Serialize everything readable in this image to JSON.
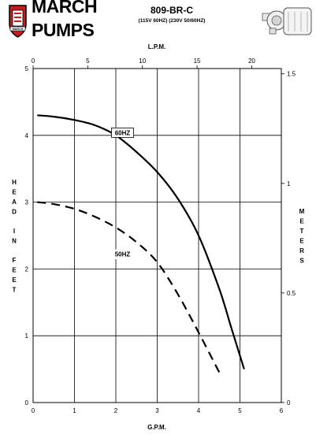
{
  "header": {
    "brand_line1": "MARCH",
    "brand_line2": "PUMPS",
    "logo_text": "MARCH",
    "model": "809-BR-C",
    "voltage": "(115V 60HZ) (230V 50/60HZ)"
  },
  "chart_data": {
    "type": "line",
    "title": "809-BR-C",
    "subtitle": "(115V 60HZ) (230V 50/60HZ)",
    "xlabel": "G.P.M.",
    "x2label": "L.P.M.",
    "ylabel": "HEAD IN FEET",
    "y2label": "METERS",
    "xlim": [
      0,
      6
    ],
    "ylim": [
      0,
      5
    ],
    "x2lim": [
      0,
      22.71
    ],
    "y2lim": [
      0,
      1.524
    ],
    "grid": true,
    "x_ticks": [
      0,
      1,
      2,
      3,
      4,
      5,
      6
    ],
    "y_ticks": [
      0,
      1,
      2,
      3,
      4,
      5
    ],
    "x2_ticks": [
      0,
      5,
      10,
      15,
      20
    ],
    "y2_ticks": [
      0,
      0.5,
      1,
      1.5
    ],
    "x_tick_labels": [
      "0",
      "1",
      "2",
      "3",
      "4",
      "5",
      "6"
    ],
    "y_tick_labels": [
      "0",
      "1",
      "2",
      "3",
      "4",
      "5"
    ],
    "x2_tick_labels": [
      "0",
      "5",
      "10",
      "15",
      "20"
    ],
    "y2_tick_labels": [
      "0",
      "0.5",
      "1",
      "1.5"
    ],
    "series": [
      {
        "name": "60HZ",
        "style": "solid",
        "x": [
          0.1,
          0.5,
          1.0,
          1.5,
          2.0,
          2.5,
          3.0,
          3.5,
          4.0,
          4.5,
          4.8,
          5.1
        ],
        "y": [
          4.3,
          4.28,
          4.23,
          4.15,
          4.0,
          3.75,
          3.45,
          3.05,
          2.5,
          1.7,
          1.1,
          0.5
        ]
      },
      {
        "name": "50HZ",
        "style": "dashed",
        "x": [
          0.1,
          0.5,
          1.0,
          1.5,
          2.0,
          2.5,
          3.0,
          3.5,
          4.0,
          4.5
        ],
        "y": [
          3.0,
          2.97,
          2.9,
          2.78,
          2.62,
          2.4,
          2.1,
          1.62,
          1.05,
          0.45
        ]
      }
    ]
  }
}
